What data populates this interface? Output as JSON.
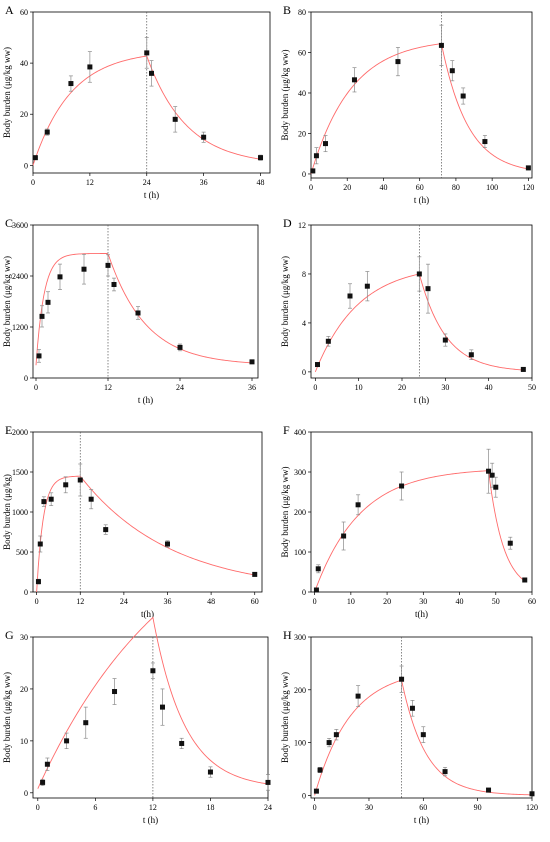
{
  "chart_data": [
    {
      "panel": "A",
      "type": "scatter",
      "xlabel": "t (h)",
      "ylabel": "Body burden (μg/kg ww)",
      "xlim": [
        0,
        50
      ],
      "ylim": [
        -3,
        60
      ],
      "xticks": [
        0,
        12,
        24,
        36,
        48
      ],
      "yticks": [
        0,
        20,
        40,
        60
      ],
      "tick_labels_x": [
        "0",
        "12",
        "24",
        "36",
        "48"
      ],
      "tick_labels_y": [
        "0",
        "20",
        "40",
        "60"
      ],
      "x": [
        0.5,
        3,
        8,
        12,
        24,
        25,
        30,
        36,
        48
      ],
      "y": [
        3,
        13,
        32,
        38.5,
        44,
        36,
        18,
        11,
        3
      ],
      "err": [
        0.5,
        1.2,
        3,
        6,
        6,
        5,
        5,
        2,
        1
      ],
      "vline": 24,
      "fit": {
        "k1": 0.125,
        "cmax": 45,
        "k2": 0.12,
        "tswitch": 24
      }
    },
    {
      "panel": "B",
      "type": "scatter",
      "xlabel": "t (h)",
      "ylabel": "Body burden (μg/kg ww)",
      "xlim": [
        0,
        122
      ],
      "ylim": [
        -2,
        80
      ],
      "xticks": [
        0,
        20,
        40,
        60,
        80,
        100,
        120
      ],
      "yticks": [
        0,
        20,
        40,
        60,
        80
      ],
      "tick_labels_x": [
        "0",
        "20",
        "40",
        "60",
        "80",
        "100",
        "120"
      ],
      "tick_labels_y": [
        "0",
        "20",
        "40",
        "60",
        "80"
      ],
      "x": [
        1,
        3,
        8,
        24,
        48,
        72,
        78,
        84,
        96,
        120
      ],
      "y": [
        1.5,
        9,
        15,
        46.5,
        55.5,
        63.5,
        51,
        38.5,
        16,
        3
      ],
      "err": [
        1,
        4,
        4,
        6,
        7,
        10,
        5,
        4,
        3,
        1
      ],
      "vline": 72,
      "fit": {
        "k1": 0.045,
        "cmax": 67,
        "k2": 0.068,
        "tswitch": 72
      }
    },
    {
      "panel": "C",
      "type": "scatter",
      "xlabel": "t (h)",
      "ylabel": "Body burden (μg/kg ww)",
      "xlim": [
        -0.5,
        37
      ],
      "ylim": [
        0,
        3600
      ],
      "xticks": [
        0,
        12,
        24,
        36
      ],
      "yticks": [
        0,
        1200,
        2400,
        3600
      ],
      "tick_labels_x": [
        "0",
        "12",
        "24",
        "36"
      ],
      "tick_labels_y": [
        "0",
        "1200",
        "2400",
        "3600"
      ],
      "x": [
        0.5,
        1,
        2,
        4,
        8,
        12,
        13,
        17,
        24,
        36
      ],
      "y": [
        520,
        1450,
        1780,
        2380,
        2560,
        2650,
        2200,
        1530,
        720,
        380
      ],
      "err": [
        150,
        250,
        250,
        300,
        350,
        250,
        150,
        150,
        80,
        40
      ],
      "vline": 12,
      "fit": {
        "k1": 0.75,
        "cmax": 2630,
        "k2": 0.16,
        "tswitch": 12,
        "base": 300
      }
    },
    {
      "panel": "D",
      "type": "scatter",
      "xlabel": "t (h)",
      "ylabel": "Body burden (μg/kg ww)",
      "xlim": [
        -1,
        50
      ],
      "ylim": [
        -0.5,
        12
      ],
      "xticks": [
        0,
        10,
        20,
        30,
        40,
        50
      ],
      "yticks": [
        0,
        4,
        8,
        12
      ],
      "tick_labels_x": [
        "0",
        "10",
        "20",
        "30",
        "40",
        "50"
      ],
      "tick_labels_y": [
        "0",
        "4",
        "8",
        "12"
      ],
      "x": [
        0.5,
        3,
        8,
        12,
        24,
        26,
        30,
        36,
        48
      ],
      "y": [
        0.6,
        2.5,
        6.2,
        7,
        8,
        6.8,
        2.6,
        1.4,
        0.2
      ],
      "err": [
        0.1,
        0.4,
        1,
        1.2,
        1.4,
        2,
        0.5,
        0.4,
        0.05
      ],
      "vline": 24,
      "fit": {
        "k1": 0.1,
        "cmax": 8.8,
        "k2": 0.165,
        "tswitch": 24
      }
    },
    {
      "panel": "E",
      "type": "scatter",
      "xlabel": "t(h)",
      "ylabel": "Body burden (μg/kg)",
      "xlim": [
        -1,
        62
      ],
      "ylim": [
        0,
        2000
      ],
      "xticks": [
        0,
        12,
        24,
        36,
        48,
        60
      ],
      "yticks": [
        0,
        500,
        1000,
        1500,
        2000
      ],
      "tick_labels_x": [
        "0",
        "12",
        "24",
        "36",
        "48",
        "60"
      ],
      "tick_labels_y": [
        "0",
        "500",
        "1000",
        "1500",
        "2000"
      ],
      "x": [
        0.5,
        1,
        2,
        4,
        8,
        12,
        15,
        19,
        36,
        60
      ],
      "y": [
        130,
        600,
        1130,
        1160,
        1340,
        1400,
        1160,
        780,
        600,
        220
      ],
      "err": [
        30,
        100,
        60,
        80,
        100,
        200,
        120,
        60,
        40,
        20
      ],
      "vline": 12,
      "fit": {
        "k1": 0.55,
        "cmax": 1450,
        "k2": 0.04,
        "tswitch": 12
      }
    },
    {
      "panel": "F",
      "type": "scatter",
      "xlabel": "t(h)",
      "ylabel": "Body burden (μg/kg ww)",
      "xlim": [
        -1,
        60
      ],
      "ylim": [
        0,
        400
      ],
      "xticks": [
        0,
        10,
        20,
        30,
        40,
        50,
        60
      ],
      "yticks": [
        0,
        100,
        200,
        300,
        400
      ],
      "tick_labels_x": [
        "0",
        "10",
        "20",
        "30",
        "40",
        "50",
        "60"
      ],
      "tick_labels_y": [
        "0",
        "100",
        "200",
        "300",
        "400"
      ],
      "x": [
        0.5,
        1,
        8,
        12,
        24,
        48,
        49,
        50,
        54,
        58
      ],
      "y": [
        5,
        58,
        140,
        218,
        265,
        302,
        292,
        262,
        122,
        30
      ],
      "err": [
        3,
        10,
        35,
        25,
        35,
        55,
        30,
        25,
        15,
        5
      ],
      "vline": null,
      "fit": {
        "k1": 0.08,
        "cmax": 310,
        "k2": 0.24,
        "tswitch": 48
      }
    },
    {
      "panel": "G",
      "type": "scatter",
      "xlabel": "t (h)",
      "ylabel": "Body burden (μg/kg ww)",
      "xlim": [
        -0.5,
        24
      ],
      "ylim": [
        -1,
        30
      ],
      "xticks": [
        0,
        6,
        12,
        18,
        24
      ],
      "yticks": [
        0,
        10,
        20,
        30
      ],
      "tick_labels_x": [
        "0",
        "6",
        "12",
        "18",
        "24"
      ],
      "tick_labels_y": [
        "0",
        "10",
        "20",
        "30"
      ],
      "x": [
        0.5,
        1,
        3,
        5,
        8,
        12,
        13,
        15,
        18,
        24
      ],
      "y": [
        2,
        5.5,
        10,
        13.5,
        19.5,
        23.5,
        16.5,
        9.5,
        4,
        2
      ],
      "err": [
        0.6,
        1.2,
        1.5,
        3,
        2.5,
        1.5,
        3.5,
        1,
        1,
        1.5
      ],
      "vline": 12,
      "fit": {
        "k1": 0.07,
        "cmax": 58,
        "k2": 0.3,
        "tswitch": 12,
        "base": 0.8
      }
    },
    {
      "panel": "H",
      "type": "scatter",
      "xlabel": "t (h)",
      "ylabel": "Body burden (μg/kg ww)",
      "xlim": [
        -2,
        120
      ],
      "ylim": [
        -5,
        300
      ],
      "xticks": [
        0,
        30,
        60,
        90,
        120
      ],
      "yticks": [
        0,
        100,
        200,
        300
      ],
      "tick_labels_x": [
        "0",
        "30",
        "60",
        "90",
        "120"
      ],
      "tick_labels_y": [
        "0",
        "100",
        "200",
        "300"
      ],
      "x": [
        1,
        3,
        8,
        12,
        24,
        48,
        54,
        60,
        72,
        96,
        120
      ],
      "y": [
        8,
        48,
        100,
        115,
        188,
        220,
        165,
        115,
        45,
        10,
        3
      ],
      "err": [
        3,
        5,
        8,
        10,
        20,
        25,
        15,
        15,
        8,
        3,
        1
      ],
      "vline": 48,
      "fit": {
        "k1": 0.05,
        "cmax": 240,
        "k2": 0.075,
        "tswitch": 48
      }
    }
  ]
}
